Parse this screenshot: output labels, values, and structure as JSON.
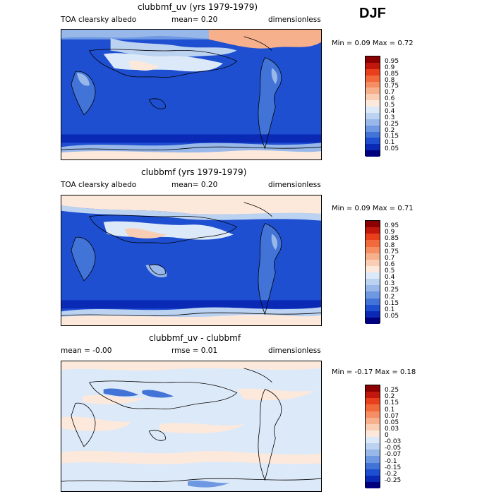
{
  "season": "DJF",
  "panels": [
    {
      "title": "clubbmf_uv (yrs 1979-1979)",
      "left_label": "TOA clearsky albedo",
      "center_label": "mean=   0.20",
      "right_label": "dimensionless",
      "minmax": "Min =   0.09 Max =   0.72",
      "colorbar_levels": [
        "0.95",
        "0.9",
        "0.85",
        "0.8",
        "0.75",
        "0.7",
        "0.6",
        "0.5",
        "0.4",
        "0.3",
        "0.25",
        "0.2",
        "0.15",
        "0.1",
        "0.05"
      ],
      "colorbar_colors": [
        "#8b0000",
        "#c0180c",
        "#e8401c",
        "#f26a3c",
        "#f58e62",
        "#f7b08c",
        "#f9ceb4",
        "#fde9dc",
        "#dce9f8",
        "#bcd2f1",
        "#98b8ea",
        "#6e98e2",
        "#4274d8",
        "#1f4fd1",
        "#0a2ab5",
        "#00007f"
      ]
    },
    {
      "title": "clubbmf (yrs 1979-1979)",
      "left_label": "TOA clearsky albedo",
      "center_label": "mean=   0.20",
      "right_label": "dimensionless",
      "minmax": "Min =   0.09 Max =   0.71",
      "colorbar_levels": [
        "0.95",
        "0.9",
        "0.85",
        "0.8",
        "0.75",
        "0.7",
        "0.6",
        "0.5",
        "0.4",
        "0.3",
        "0.25",
        "0.2",
        "0.15",
        "0.1",
        "0.05"
      ],
      "colorbar_colors": [
        "#8b0000",
        "#c0180c",
        "#e8401c",
        "#f26a3c",
        "#f58e62",
        "#f7b08c",
        "#f9ceb4",
        "#fde9dc",
        "#dce9f8",
        "#bcd2f1",
        "#98b8ea",
        "#6e98e2",
        "#4274d8",
        "#1f4fd1",
        "#0a2ab5",
        "#00007f"
      ]
    },
    {
      "title": "clubbmf_uv - clubbmf",
      "left_label": "mean =   -0.00",
      "center_label": "rmse =   0.01",
      "right_label": "dimensionless",
      "minmax": "Min =  -0.17 Max =   0.18",
      "colorbar_levels": [
        "0.25",
        "0.2",
        "0.15",
        "0.1",
        "0.07",
        "0.05",
        "0.03",
        "0",
        "-0.03",
        "-0.05",
        "-0.07",
        "-0.1",
        "-0.15",
        "-0.2",
        "-0.25"
      ],
      "colorbar_colors": [
        "#8b0000",
        "#c0180c",
        "#e8401c",
        "#f26a3c",
        "#f58e62",
        "#f7b08c",
        "#f9ceb4",
        "#fde9dc",
        "#dce9f8",
        "#bcd2f1",
        "#98b8ea",
        "#6e98e2",
        "#4274d8",
        "#1f4fd1",
        "#0a2ab5",
        "#00007f"
      ]
    }
  ]
}
